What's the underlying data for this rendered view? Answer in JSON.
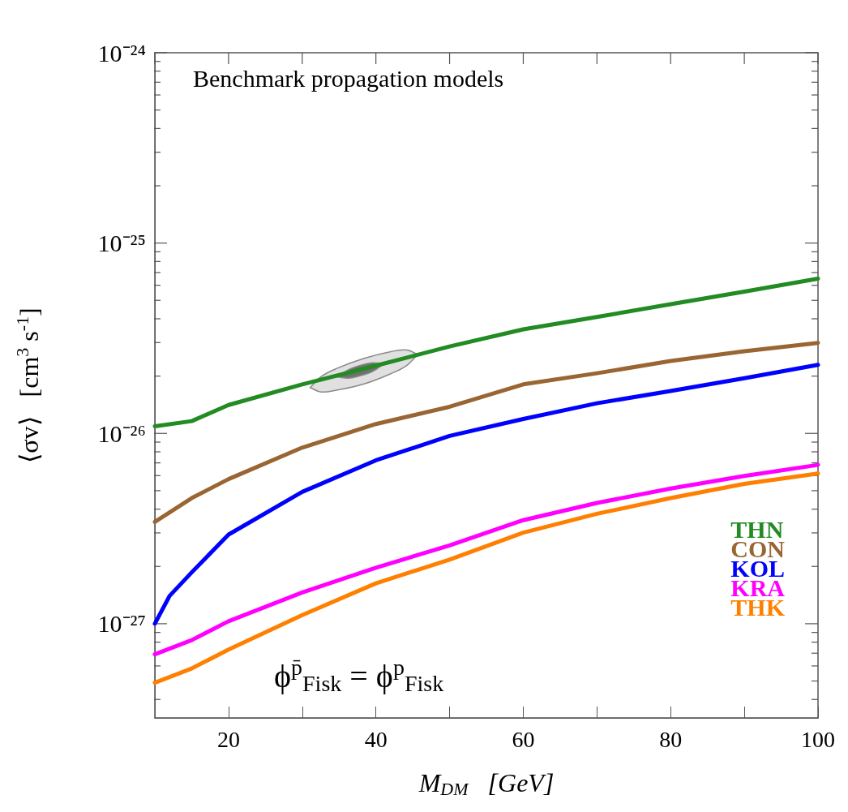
{
  "chart_data": {
    "type": "line",
    "xlabel": "M$_{DM}$   [GeV]",
    "ylabel": "⟨σv⟩   [cm$^{3}$ s$^{-1}$]",
    "annotations": [
      "Benchmark propagation models",
      "ϕ$^{p̄}$$_{Fisk}$ = ϕ$^{p}$$_{Fisk}$"
    ],
    "x": [
      10,
      15,
      20,
      30,
      40,
      50,
      60,
      70,
      80,
      90,
      100
    ],
    "series": [
      {
        "name": "THN",
        "color": "#228b22",
        "values": [
          1.09e-26,
          1.16e-26,
          1.41e-26,
          1.81e-26,
          2.27e-26,
          2.86e-26,
          3.52e-26,
          4.09e-26,
          4.77e-26,
          5.56e-26,
          6.5e-26
        ]
      },
      {
        "name": "CON",
        "color": "#996633",
        "values": [
          3.43e-27,
          4.57e-27,
          5.75e-27,
          8.42e-27,
          1.12e-26,
          1.38e-26,
          1.81e-26,
          2.07e-26,
          2.4e-26,
          2.7e-26,
          2.99e-26
        ]
      },
      {
        "name": "KOL",
        "color": "#0000ff",
        "x": [
          10,
          12,
          15,
          20,
          30,
          40,
          50,
          60,
          70,
          80,
          90,
          100
        ],
        "values": [
          1e-27,
          1.4e-27,
          1.86e-27,
          2.94e-27,
          4.93e-27,
          7.22e-27,
          9.7e-27,
          1.19e-26,
          1.44e-26,
          1.67e-26,
          1.95e-26,
          2.29e-26
        ]
      },
      {
        "name": "KRA",
        "color": "#ff00ff",
        "values": [
          6.9e-28,
          8.2e-28,
          1.03e-27,
          1.46e-27,
          1.97e-27,
          2.58e-27,
          3.5e-27,
          4.31e-27,
          5.13e-27,
          5.97e-27,
          6.83e-27
        ]
      },
      {
        "name": "THK",
        "color": "#ff8000",
        "values": [
          4.9e-28,
          5.82e-28,
          7.31e-28,
          1.11e-27,
          1.63e-27,
          2.17e-27,
          3.01e-27,
          3.78e-27,
          4.57e-27,
          5.43e-27,
          6.15e-27
        ]
      },
      {
        "type": "area",
        "color": "#e0e0e0",
        "x": [
          31.08,
          32.58,
          34.76,
          38.4,
          42.04,
          44.22,
          45.67
        ],
        "values": [
          null,
          null,
          null,
          null,
          null,
          null,
          null
        ],
        "lower": [
          1.74e-26,
          1.65e-26,
          1.69e-26,
          1.82e-26,
          2.06e-26,
          2.28e-26,
          2.6e-26
        ],
        "upper": [
          1.74e-26,
          1.99e-26,
          2.2e-26,
          2.48e-26,
          2.69e-26,
          2.74e-26,
          2.6e-26
        ]
      },
      {
        "type": "area",
        "color": "#707070",
        "x": [
          34.76,
          36.35,
          37.94,
          39.53,
          41.12
        ],
        "values": [
          null,
          null,
          null,
          null,
          null
        ],
        "lower": [
          1.98e-26,
          1.95e-26,
          2.01e-26,
          2.11e-26,
          2.32e-26
        ],
        "upper": [
          1.98e-26,
          2.17e-26,
          2.28e-26,
          2.35e-26,
          2.32e-26
        ]
      }
    ],
    "log": "y",
    "xlim": [
      10,
      100
    ],
    "ylim": [
      3.2e-28,
      1e-24
    ],
    "xticks": [
      {
        "value": 10,
        "label": null
      },
      20,
      {
        "value": 30,
        "label": null
      },
      40,
      {
        "value": 50,
        "label": null
      },
      60,
      {
        "value": 70,
        "label": null
      },
      80,
      {
        "value": 90,
        "label": null
      },
      100
    ],
    "yticks": [
      {
        "value": 4e-28,
        "label": null
      },
      {
        "value": 5e-28,
        "label": null
      },
      {
        "value": 6e-28,
        "label": null
      },
      {
        "value": 7e-28,
        "label": null
      },
      {
        "value": 8e-28,
        "label": null
      },
      {
        "value": 9e-28,
        "label": null
      },
      {
        "value": 1e-27,
        "label": "10⁻²⁷"
      },
      {
        "value": 2e-27,
        "label": null
      },
      {
        "value": 3e-27,
        "label": null
      },
      {
        "value": 4e-27,
        "label": null
      },
      {
        "value": 5e-27,
        "label": null
      },
      {
        "value": 6e-27,
        "label": null
      },
      {
        "value": 7e-27,
        "label": null
      },
      {
        "value": 8e-27,
        "label": null
      },
      {
        "value": 9e-27,
        "label": null
      },
      {
        "value": 1e-26,
        "label": "10⁻²⁶"
      },
      {
        "value": 2e-26,
        "label": null
      },
      {
        "value": 3e-26,
        "label": null
      },
      {
        "value": 4e-26,
        "label": null
      },
      {
        "value": 5e-26,
        "label": null
      },
      {
        "value": 6e-26,
        "label": null
      },
      {
        "value": 7e-26,
        "label": null
      },
      {
        "value": 8e-26,
        "label": null
      },
      {
        "value": 9e-26,
        "label": null
      },
      {
        "value": 1e-25,
        "label": "10⁻²⁵"
      },
      {
        "value": 2e-25,
        "label": null
      },
      {
        "value": 3e-25,
        "label": null
      },
      {
        "value": 4e-25,
        "label": null
      },
      {
        "value": 5e-25,
        "label": null
      },
      {
        "value": 6e-25,
        "label": null
      },
      {
        "value": 7e-25,
        "label": null
      },
      {
        "value": 8e-25,
        "label": null
      },
      {
        "value": 9e-25,
        "label": null
      },
      {
        "value": 1e-24,
        "label": "10⁻²⁴"
      }
    ],
    "grid": false,
    "legend": "bottom right",
    "marker": "none",
    "line_style": "solid"
  }
}
